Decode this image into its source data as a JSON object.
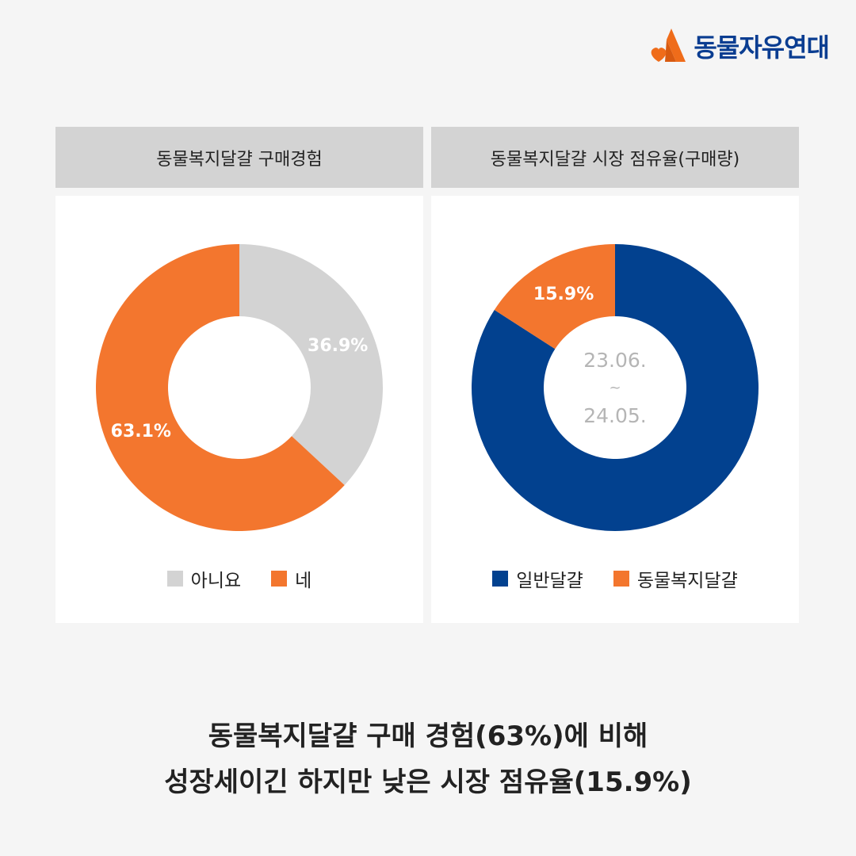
{
  "brand": {
    "name": "동물자유연대",
    "color": "#0a3d91",
    "accent": "#ef6c1a"
  },
  "chart_data": [
    {
      "type": "pie",
      "title": "동물복지달걀 구매경험",
      "labels": [
        "아니요",
        "네"
      ],
      "values": [
        36.9,
        63.1
      ],
      "value_labels": [
        "36.9%",
        "63.1%"
      ],
      "colors": [
        "#d3d3d3",
        "#f3762e"
      ],
      "legend": "bottom"
    },
    {
      "type": "pie",
      "title": "동물복지달걀 시장 점유율(구매량)",
      "labels": [
        "일반달걀",
        "동물복지달걀"
      ],
      "values": [
        84.1,
        15.9
      ],
      "value_labels": [
        "",
        "15.9%"
      ],
      "colors": [
        "#02418f",
        "#f3762e"
      ],
      "center_text": [
        "23.06.",
        "~",
        "24.05."
      ],
      "legend": "bottom"
    }
  ],
  "caption": {
    "line1": "동물복지달걀 구매 경험(63%)에 비해",
    "line2": "성장세이긴 하지만 낮은 시장 점유율(15.9%)"
  }
}
